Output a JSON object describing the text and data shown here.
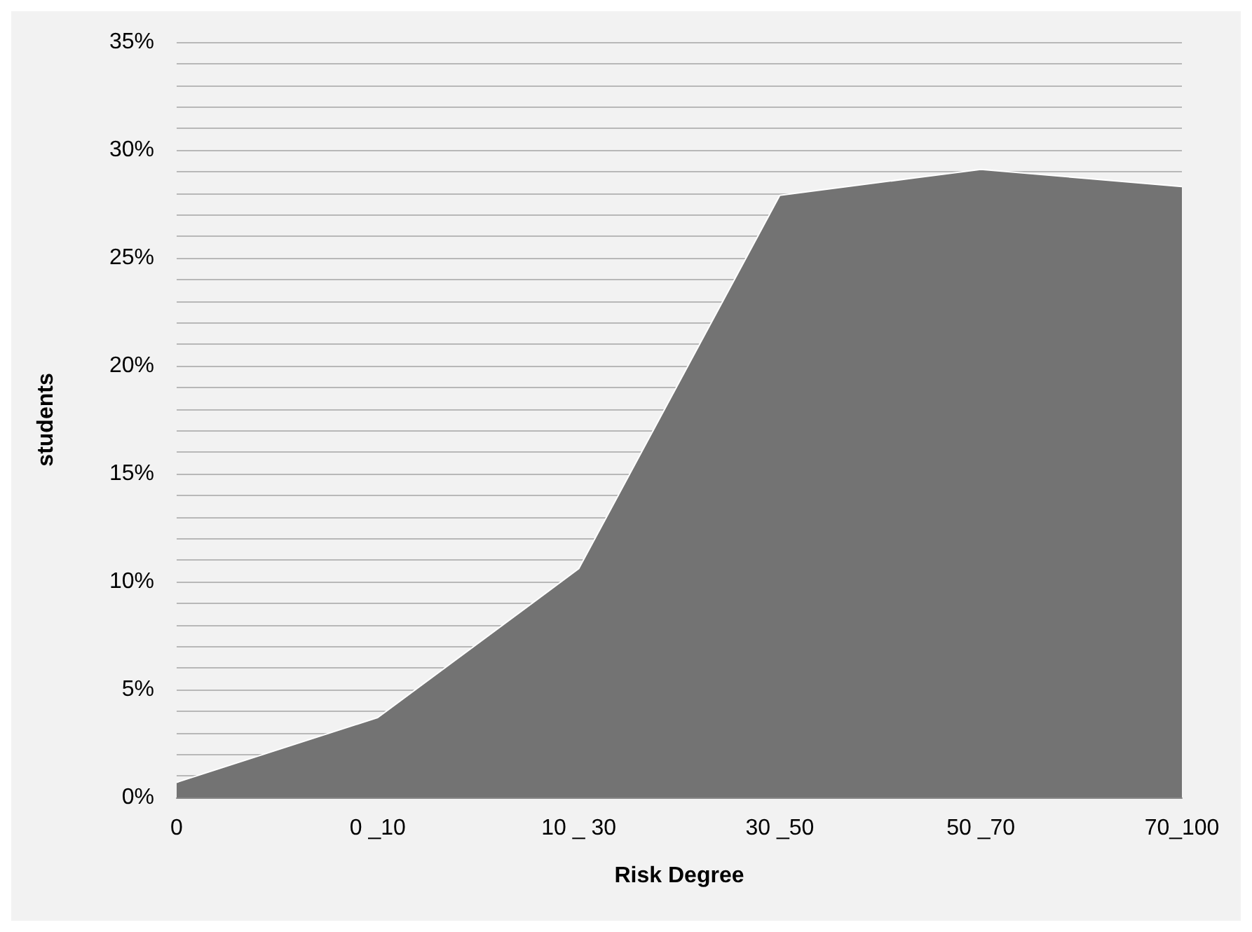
{
  "chart_data": {
    "type": "area",
    "xlabel": "Risk Degree",
    "ylabel": "students",
    "categories": [
      "0",
      "0 _10",
      "10 _ 30",
      "30 _50",
      "50 _70",
      "70_100"
    ],
    "series": [
      {
        "color": "#737373",
        "values": [
          0.7,
          3.7,
          10.6,
          27.9,
          29.1,
          28.3
        ]
      }
    ],
    "ylim": [
      0,
      35
    ],
    "yticks": [
      {
        "value": 0,
        "label": "0%"
      },
      {
        "value": 1,
        "label": null
      },
      {
        "value": 2,
        "label": null
      },
      {
        "value": 3,
        "label": null
      },
      {
        "value": 4,
        "label": null
      },
      {
        "value": 5,
        "label": "5%"
      },
      {
        "value": 6,
        "label": null
      },
      {
        "value": 7,
        "label": null
      },
      {
        "value": 8,
        "label": null
      },
      {
        "value": 9,
        "label": null
      },
      {
        "value": 10,
        "label": "10%"
      },
      {
        "value": 11,
        "label": null
      },
      {
        "value": 12,
        "label": null
      },
      {
        "value": 13,
        "label": null
      },
      {
        "value": 14,
        "label": null
      },
      {
        "value": 15,
        "label": "15%"
      },
      {
        "value": 16,
        "label": null
      },
      {
        "value": 17,
        "label": null
      },
      {
        "value": 18,
        "label": null
      },
      {
        "value": 19,
        "label": null
      },
      {
        "value": 20,
        "label": "20%"
      },
      {
        "value": 21,
        "label": null
      },
      {
        "value": 22,
        "label": null
      },
      {
        "value": 23,
        "label": null
      },
      {
        "value": 24,
        "label": null
      },
      {
        "value": 25,
        "label": "25%"
      },
      {
        "value": 26,
        "label": null
      },
      {
        "value": 27,
        "label": null
      },
      {
        "value": 28,
        "label": null
      },
      {
        "value": 29,
        "label": null
      },
      {
        "value": 30,
        "label": "30%"
      },
      {
        "value": 31,
        "label": null
      },
      {
        "value": 32,
        "label": null
      },
      {
        "value": 33,
        "label": null
      },
      {
        "value": 34,
        "label": null
      },
      {
        "value": 35,
        "label": "35%"
      }
    ],
    "grid": "y"
  }
}
